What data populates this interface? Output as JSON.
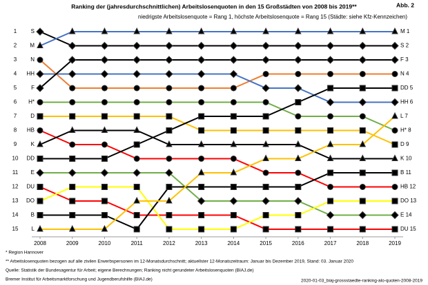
{
  "chart_data": {
    "type": "bump",
    "title": "Ranking der (jahresdurchschnittlichen) Arbeitslosenquoten in den 15 Großstädten von 2008 bis 2019**",
    "subtitle": "niedrigste Arbeitslosenquote = Rang 1, höchste Arbeitslosenquote = Rang 15 (Städte: siehe Kfz-Kennzeichen)",
    "figure_label": "Abb. 2",
    "x": [
      2008,
      2009,
      2010,
      2011,
      2012,
      2013,
      2014,
      2015,
      2016,
      2017,
      2018,
      2019
    ],
    "xlim": [
      2008,
      2019
    ],
    "ylim": [
      1,
      15
    ],
    "yticks": [
      1,
      2,
      3,
      4,
      5,
      6,
      7,
      8,
      9,
      10,
      11,
      12,
      13,
      14,
      15
    ],
    "y_inverted": true,
    "series": [
      {
        "name": "S",
        "color": "#000000",
        "marker": "diamond",
        "marker_fill": "#ffff00",
        "values": [
          1,
          2,
          2,
          2,
          2,
          2,
          2,
          2,
          2,
          2,
          2,
          2
        ]
      },
      {
        "name": "M",
        "color": "#4472c4",
        "marker": "triangle",
        "marker_fill": "#ffffff",
        "values": [
          2,
          1,
          1,
          1,
          1,
          1,
          1,
          1,
          1,
          1,
          1,
          1
        ]
      },
      {
        "name": "N",
        "color": "#ed7d31",
        "marker": "circle",
        "marker_fill": "#ffffff",
        "values": [
          3,
          5,
          5,
          5,
          5,
          5,
          5,
          4,
          4,
          4,
          4,
          4
        ]
      },
      {
        "name": "HH",
        "color": "#4472c4",
        "marker": "diamond",
        "marker_fill": "#ffffff",
        "values": [
          4,
          4,
          4,
          4,
          4,
          4,
          4,
          5,
          5,
          6,
          6,
          6
        ]
      },
      {
        "name": "F",
        "color": "#000000",
        "marker": "diamond",
        "marker_fill": "#ff0000",
        "values": [
          5,
          3,
          3,
          3,
          3,
          3,
          3,
          3,
          3,
          3,
          3,
          3
        ]
      },
      {
        "name": "H*",
        "color": "#70ad47",
        "marker": "circle",
        "marker_fill": "#70ad47",
        "values": [
          6,
          6,
          6,
          6,
          6,
          6,
          6,
          6,
          7,
          7,
          7,
          8
        ]
      },
      {
        "name": "D",
        "color": "#ffc000",
        "marker": "square",
        "marker_fill": "#b4e080",
        "values": [
          7,
          7,
          7,
          7,
          7,
          8,
          8,
          8,
          8,
          8,
          8,
          9
        ]
      },
      {
        "name": "HB",
        "color": "#ff0000",
        "marker": "circle",
        "marker_fill": "#ff0000",
        "values": [
          8,
          9,
          9,
          10,
          10,
          10,
          10,
          11,
          11,
          12,
          12,
          12
        ]
      },
      {
        "name": "K",
        "color": "#000000",
        "marker": "triangle",
        "marker_fill": "#ffffff",
        "values": [
          9,
          8,
          8,
          8,
          9,
          9,
          9,
          9,
          9,
          10,
          10,
          10
        ]
      },
      {
        "name": "DD",
        "color": "#000000",
        "marker": "square",
        "marker_fill": "#ffff00",
        "values": [
          10,
          10,
          10,
          9,
          8,
          7,
          7,
          7,
          6,
          5,
          5,
          5
        ]
      },
      {
        "name": "E",
        "color": "#70ad47",
        "marker": "diamond",
        "marker_fill": "#ffffff",
        "values": [
          11,
          11,
          11,
          11,
          11,
          13,
          13,
          13,
          13,
          14,
          14,
          14
        ]
      },
      {
        "name": "DU",
        "color": "#ff0000",
        "marker": "square",
        "marker_fill": "#ffffff",
        "values": [
          12,
          13,
          13,
          14,
          14,
          14,
          14,
          15,
          15,
          15,
          15,
          15
        ]
      },
      {
        "name": "DO",
        "color": "#ffff00",
        "marker": "square",
        "marker_fill": "#ffff00",
        "values": [
          13,
          12,
          12,
          12,
          15,
          15,
          15,
          14,
          14,
          13,
          13,
          13
        ]
      },
      {
        "name": "B",
        "color": "#000000",
        "marker": "square",
        "marker_fill": "#ffa500",
        "values": [
          14,
          14,
          14,
          15,
          12,
          12,
          12,
          12,
          12,
          11,
          11,
          11
        ]
      },
      {
        "name": "L",
        "color": "#ffc000",
        "marker": "triangle",
        "marker_fill": "#a9a9a9",
        "values": [
          15,
          15,
          15,
          13,
          13,
          11,
          11,
          10,
          10,
          9,
          9,
          7
        ]
      }
    ],
    "notes": [
      "* Region Hannover",
      "** Arbeitslosenquoten bezogen auf alle zivilen Erwerbspersonen im 12-Monatsdurchschnitt; aktuellster 12-Monatszeitraum: Januar bis Dezember 2019, Stand: 03. Januar 2020",
      "Quelle: Statistik der Bundesagentur für Arbeit; eigene Berechnungen; Ranking nicht gerundeter Arbeitslosenquoten (BIAJ.de)",
      "Bremer Institut für Arbeitsmarktforschung und Jugendberufshilfe (BIAJ.de)"
    ],
    "file_name": "2020-01-03_biaj-grossstaedte-ranking-alo-quoten-2008-2019"
  }
}
